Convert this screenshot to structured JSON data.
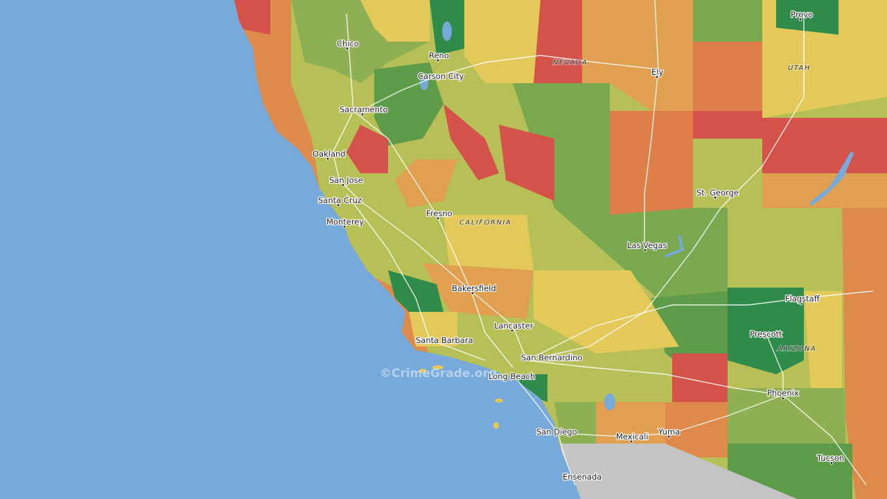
{
  "watermark": "©CrimeGrade.org",
  "regions": [
    "NEVADA",
    "UTAH",
    "CALIFORNIA",
    "ARIZONA"
  ],
  "cities": [
    "Provo",
    "Chico",
    "Reno",
    "Carson City",
    "Ely",
    "Sacramento",
    "Oakland",
    "San Jose",
    "Santa Cruz",
    "Monterey",
    "Fresno",
    "St. George",
    "Las Vegas",
    "Bakersfield",
    "Flagstaff",
    "Prescott",
    "Lancaster",
    "Santa Barbara",
    "San Bernardino",
    "Long Beach",
    "Phoenix",
    "San Diego",
    "Mexicali",
    "Yuma",
    "Tucson",
    "Ensenada"
  ]
}
